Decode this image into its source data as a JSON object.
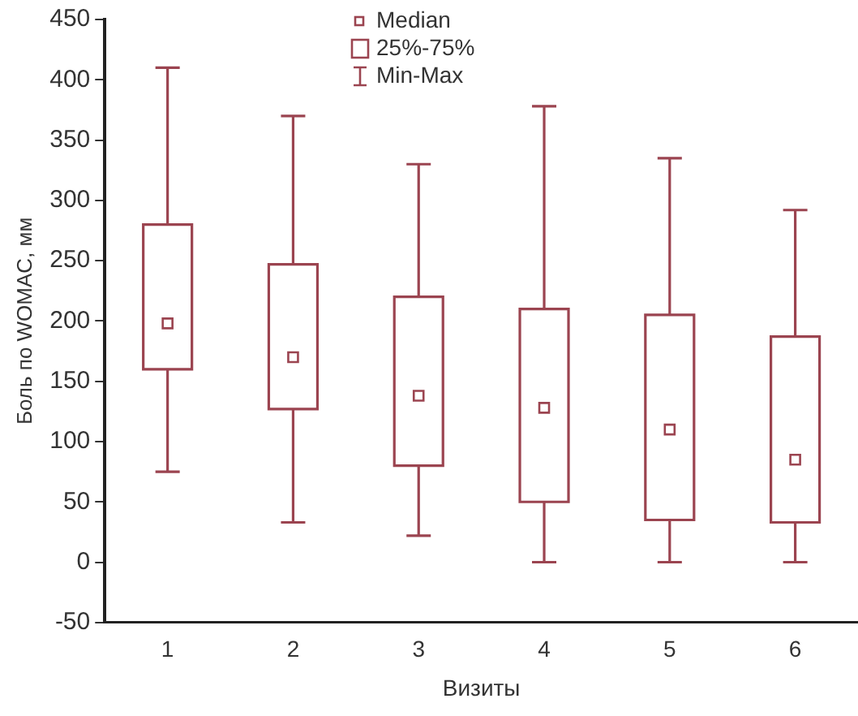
{
  "chart_data": {
    "type": "box",
    "categories": [
      "1",
      "2",
      "3",
      "4",
      "5",
      "6"
    ],
    "xlabel": "Визиты",
    "ylabel": "Боль по WOMAC, мм",
    "ylim": [
      -50,
      450
    ],
    "yticks": [
      -50,
      0,
      50,
      100,
      150,
      200,
      250,
      300,
      350,
      400,
      450
    ],
    "grid": false,
    "color": "#9b4450",
    "boxes": [
      {
        "low": 75,
        "q1": 160,
        "median": 198,
        "q3": 280,
        "high": 410
      },
      {
        "low": 33,
        "q1": 127,
        "median": 170,
        "q3": 247,
        "high": 370
      },
      {
        "low": 22,
        "q1": 80,
        "median": 138,
        "q3": 220,
        "high": 330
      },
      {
        "low": 0,
        "q1": 50,
        "median": 128,
        "q3": 210,
        "high": 378
      },
      {
        "low": 0,
        "q1": 35,
        "median": 110,
        "q3": 205,
        "high": 335
      },
      {
        "low": 0,
        "q1": 33,
        "median": 85,
        "q3": 187,
        "high": 292
      }
    ],
    "annotations": [
      "Median",
      "25%-75%",
      "Min-Max"
    ]
  }
}
